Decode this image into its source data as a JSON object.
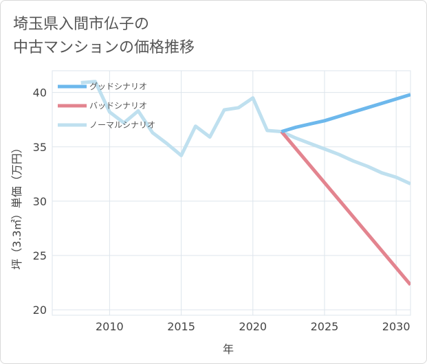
{
  "title_lines": [
    "埼玉県入間市仏子の",
    "中古マンションの価格推移"
  ],
  "chart_data": {
    "type": "line",
    "xlabel": "年",
    "ylabel": "坪（3.3㎡）単価（万円）",
    "xlim": [
      2006,
      2031
    ],
    "ylim": [
      19.5,
      42
    ],
    "x_ticks": [
      2010,
      2015,
      2020,
      2025,
      2030
    ],
    "y_ticks": [
      20,
      25,
      30,
      35,
      40
    ],
    "grid": true,
    "legend_position": "top-left",
    "series": [
      {
        "name": "グッドシナリオ",
        "color": "#6db8ec",
        "x": [
          2022,
          2023,
          2024,
          2025,
          2026,
          2027,
          2028,
          2029,
          2030,
          2031
        ],
        "y": [
          36.4,
          36.8,
          37.1,
          37.4,
          37.8,
          38.2,
          38.6,
          39.0,
          39.4,
          39.8
        ]
      },
      {
        "name": "バッドシナリオ",
        "color": "#e3848f",
        "x": [
          2022,
          2031
        ],
        "y": [
          36.4,
          22.3
        ]
      },
      {
        "name": "ノーマルシナリオ",
        "color": "#bfe0ef",
        "x": [
          2008,
          2009,
          2010,
          2011,
          2012,
          2013,
          2014,
          2015,
          2016,
          2017,
          2018,
          2019,
          2020,
          2021,
          2022,
          2023,
          2024,
          2025,
          2026,
          2027,
          2028,
          2029,
          2030,
          2031
        ],
        "y": [
          40.9,
          41.0,
          38.2,
          37.2,
          38.3,
          36.3,
          35.3,
          34.2,
          36.9,
          35.9,
          38.4,
          38.6,
          39.5,
          36.5,
          36.4,
          35.8,
          35.3,
          34.8,
          34.3,
          33.7,
          33.2,
          32.6,
          32.2,
          31.6
        ]
      }
    ]
  }
}
